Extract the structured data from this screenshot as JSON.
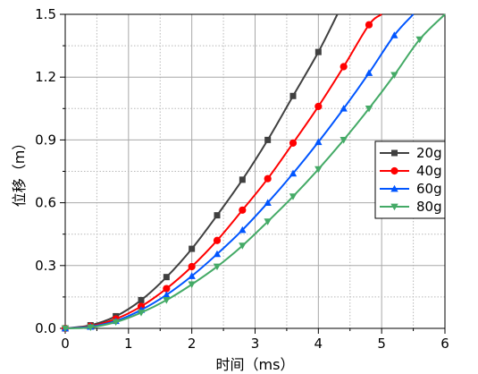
{
  "chart_data": {
    "type": "line",
    "title": "",
    "xlabel": "时间（ms）",
    "ylabel": "位移（m）",
    "xlim": [
      0,
      6
    ],
    "ylim": [
      0,
      1.5
    ],
    "x_ticks": [
      0,
      1,
      2,
      3,
      4,
      5,
      6
    ],
    "x_tick_labels": [
      "0",
      "1",
      "2",
      "3",
      "4",
      "5",
      "6"
    ],
    "y_ticks": [
      0.0,
      0.3,
      0.6,
      0.9,
      1.2,
      1.5
    ],
    "y_tick_labels": [
      "0.0",
      "0.3",
      "0.6",
      "0.9",
      "1.2",
      "1.5"
    ],
    "grid": true,
    "legend_position": "right",
    "series": [
      {
        "name": "20g",
        "color": "#404040",
        "marker": "square",
        "x": [
          0,
          0.4,
          0.8,
          1.2,
          1.6,
          2.0,
          2.4,
          2.8,
          3.2,
          3.6,
          4.0,
          4.3
        ],
        "y": [
          0.0,
          0.015,
          0.058,
          0.135,
          0.245,
          0.38,
          0.54,
          0.71,
          0.9,
          1.11,
          1.32,
          1.5
        ]
      },
      {
        "name": "40g",
        "color": "#ff0000",
        "marker": "circle",
        "x": [
          0,
          0.4,
          0.8,
          1.2,
          1.6,
          2.0,
          2.4,
          2.8,
          3.2,
          3.6,
          4.0,
          4.4,
          4.8,
          5.0
        ],
        "y": [
          0.0,
          0.01,
          0.045,
          0.105,
          0.19,
          0.295,
          0.42,
          0.565,
          0.715,
          0.885,
          1.06,
          1.25,
          1.45,
          1.5
        ]
      },
      {
        "name": "60g",
        "color": "#0055ff",
        "marker": "triangle-up",
        "x": [
          0,
          0.4,
          0.8,
          1.2,
          1.6,
          2.0,
          2.4,
          2.8,
          3.2,
          3.6,
          4.0,
          4.4,
          4.8,
          5.2,
          5.5
        ],
        "y": [
          0.0,
          0.008,
          0.035,
          0.088,
          0.16,
          0.25,
          0.355,
          0.47,
          0.6,
          0.74,
          0.89,
          1.05,
          1.22,
          1.4,
          1.5
        ]
      },
      {
        "name": "80g",
        "color": "#44aa66",
        "marker": "triangle-down",
        "x": [
          0,
          0.4,
          0.8,
          1.2,
          1.6,
          2.0,
          2.4,
          2.8,
          3.2,
          3.6,
          4.0,
          4.4,
          4.8,
          5.2,
          5.6,
          6.0
        ],
        "y": [
          0.0,
          0.005,
          0.03,
          0.075,
          0.135,
          0.21,
          0.295,
          0.395,
          0.51,
          0.63,
          0.76,
          0.9,
          1.05,
          1.21,
          1.38,
          1.5
        ]
      }
    ]
  }
}
